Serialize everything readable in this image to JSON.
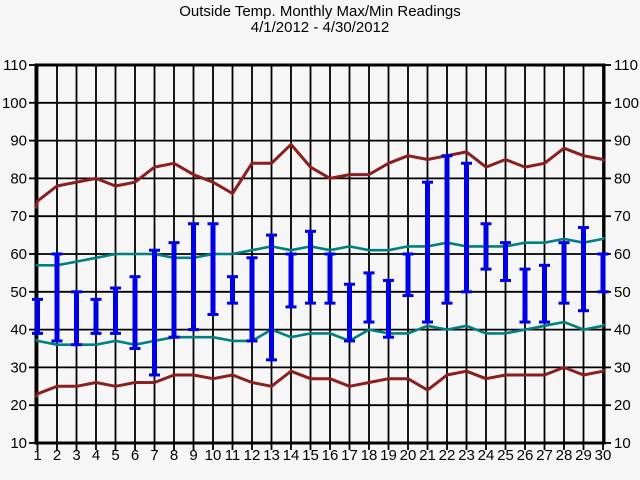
{
  "header": {
    "title": "Outside Temp. Monthly Max/Min Readings",
    "subtitle": "4/1/2012 - 4/30/2012"
  },
  "chart_data": {
    "type": "line",
    "title": "Outside Temp. Monthly Max/Min Readings",
    "subtitle": "4/1/2012 - 4/30/2012",
    "x_categories": [
      "1",
      "2",
      "3",
      "4",
      "5",
      "6",
      "7",
      "8",
      "9",
      "10",
      "11",
      "12",
      "13",
      "14",
      "15",
      "16",
      "17",
      "18",
      "19",
      "20",
      "21",
      "22",
      "23",
      "24",
      "25",
      "26",
      "27",
      "28",
      "29",
      "30"
    ],
    "ylim": [
      10,
      110
    ],
    "ytick_labels": [
      "110",
      "100",
      "90",
      "80",
      "70",
      "60",
      "50",
      "40",
      "30",
      "20",
      "10"
    ],
    "grid": true,
    "legend": "none",
    "colors": {
      "range_bar": "#0000E6",
      "teal_line": "#008080",
      "red_line": "#8B1E1E",
      "grid": "#000000",
      "background": "#F6F6F6"
    },
    "series": [
      {
        "name": "upper-red-line",
        "render": "line",
        "color": "#8B1E1E",
        "values": [
          74,
          78,
          79,
          80,
          78,
          79,
          83,
          84,
          81,
          79,
          76,
          84,
          84,
          89,
          83,
          80,
          81,
          81,
          84,
          86,
          85,
          86,
          87,
          83,
          85,
          83,
          84,
          88,
          86,
          85
        ]
      },
      {
        "name": "upper-teal-line",
        "render": "line",
        "color": "#008080",
        "values": [
          57,
          57,
          58,
          59,
          60,
          60,
          60,
          59,
          59,
          60,
          60,
          61,
          62,
          61,
          62,
          61,
          62,
          61,
          61,
          62,
          62,
          63,
          62,
          62,
          62,
          63,
          63,
          64,
          63,
          64
        ]
      },
      {
        "name": "lower-teal-line",
        "render": "line",
        "color": "#008080",
        "values": [
          37,
          36,
          36,
          36,
          37,
          36,
          37,
          38,
          38,
          38,
          37,
          37,
          40,
          38,
          39,
          39,
          37,
          40,
          39,
          39,
          41,
          40,
          41,
          39,
          39,
          40,
          41,
          42,
          40,
          41
        ]
      },
      {
        "name": "lower-red-line",
        "render": "line",
        "color": "#8B1E1E",
        "values": [
          23,
          25,
          25,
          26,
          25,
          26,
          26,
          28,
          28,
          27,
          28,
          26,
          25,
          29,
          27,
          27,
          25,
          26,
          27,
          27,
          24,
          28,
          29,
          27,
          28,
          28,
          28,
          30,
          28,
          29
        ]
      },
      {
        "name": "daily-max",
        "render": "range-bar-top",
        "color": "#0000E6",
        "values": [
          48,
          60,
          50,
          48,
          51,
          54,
          61,
          63,
          68,
          68,
          54,
          59,
          65,
          60,
          66,
          60,
          52,
          55,
          53,
          60,
          79,
          86,
          84,
          68,
          63,
          56,
          57,
          63,
          67,
          60
        ]
      },
      {
        "name": "daily-min",
        "render": "range-bar-bottom",
        "color": "#0000E6",
        "values": [
          39,
          37,
          36,
          39,
          39,
          35,
          28,
          38,
          40,
          44,
          47,
          37,
          32,
          46,
          47,
          47,
          37,
          42,
          38,
          49,
          42,
          47,
          50,
          56,
          53,
          42,
          42,
          47,
          45,
          50
        ]
      }
    ]
  }
}
